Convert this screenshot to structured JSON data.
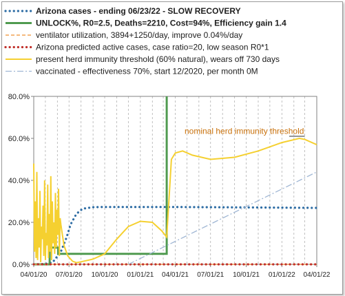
{
  "chart_data": {
    "type": "line",
    "legend_position": "top",
    "grid": "vertical dashed",
    "ylim": [
      0,
      80
    ],
    "y_ticks": [
      "0.0%",
      "20.0%",
      "40.0%",
      "60.0%",
      "80.0%"
    ],
    "x_ticks": [
      "04/01/20",
      "07/01/20",
      "10/01/20",
      "01/01/21",
      "04/01/21",
      "07/01/21",
      "10/01/21",
      "01/01/22",
      "04/01/22"
    ],
    "annotation": "nominal herd immunity threshold",
    "series": [
      {
        "name": "Arizona cases - ending 06/23/22 - SLOW RECOVERY",
        "color": "#2e6da4",
        "style": "dotted",
        "points": [
          [
            "2020-04-01",
            0
          ],
          [
            "2020-05-01",
            0.2
          ],
          [
            "2020-05-20",
            1
          ],
          [
            "2020-06-10",
            6
          ],
          [
            "2020-06-25",
            13
          ],
          [
            "2020-07-05",
            19
          ],
          [
            "2020-07-20",
            24
          ],
          [
            "2020-08-05",
            26.5
          ],
          [
            "2020-09-01",
            27.2
          ],
          [
            "2020-10-01",
            27.3
          ],
          [
            "2021-04-01",
            27.3
          ],
          [
            "2021-10-01",
            27.1
          ],
          [
            "2022-04-01",
            26.9
          ]
        ]
      },
      {
        "name": "UNLOCK%, R0=2.5, Deaths=2210, Cost=94%, Efficiency gain 1.4",
        "color": "#4f9a4f",
        "style": "solid-thick",
        "points": [
          [
            "2020-04-01",
            0
          ],
          [
            "2020-05-12",
            0
          ],
          [
            "2020-05-12",
            8
          ],
          [
            "2020-06-03",
            8
          ],
          [
            "2020-06-03",
            5
          ],
          [
            "2021-03-10",
            5
          ],
          [
            "2021-03-10",
            80
          ]
        ]
      },
      {
        "name": "ventilator utilization, 3894+1250/day, improve 0.04%/day",
        "color": "#f0a050",
        "style": "dashed",
        "points": [
          [
            "2020-04-01",
            0
          ],
          [
            "2022-04-01",
            0
          ]
        ]
      },
      {
        "name": "Arizona predicted active cases, case ratio=20, low season R0*1",
        "color": "#c0302a",
        "style": "dotted",
        "points": [
          [
            "2020-04-01",
            0
          ],
          [
            "2022-04-01",
            0
          ]
        ]
      },
      {
        "name": "present herd immunity threshold (60% natural), wears off 730 days",
        "color": "#f5d030",
        "style": "solid",
        "points": [
          [
            "2020-06-10",
            19
          ],
          [
            "2020-06-18",
            9
          ],
          [
            "2020-06-28",
            4
          ],
          [
            "2020-07-10",
            1.5
          ],
          [
            "2020-07-20",
            0.8
          ],
          [
            "2020-08-01",
            1.2
          ],
          [
            "2020-09-01",
            2.5
          ],
          [
            "2020-10-01",
            5
          ],
          [
            "2020-11-01",
            12
          ],
          [
            "2020-12-01",
            18
          ],
          [
            "2021-01-01",
            20.5
          ],
          [
            "2021-02-01",
            20
          ],
          [
            "2021-02-25",
            16
          ],
          [
            "2021-03-10",
            13
          ],
          [
            "2021-03-22",
            50
          ],
          [
            "2021-04-01",
            53
          ],
          [
            "2021-04-20",
            54
          ],
          [
            "2021-05-15",
            52
          ],
          [
            "2021-07-01",
            50
          ],
          [
            "2021-09-01",
            51
          ],
          [
            "2021-11-01",
            54
          ],
          [
            "2022-01-01",
            58
          ],
          [
            "2022-02-15",
            60
          ],
          [
            "2022-03-01",
            59.5
          ],
          [
            "2022-04-01",
            57
          ]
        ]
      },
      {
        "name": "vaccinated - effectiveness 70%, start 12/2020, per month 0M",
        "color": "#9fb6d4",
        "style": "dashdot",
        "points": [
          [
            "2020-12-01",
            0
          ],
          [
            "2022-04-01",
            44
          ]
        ]
      }
    ]
  }
}
